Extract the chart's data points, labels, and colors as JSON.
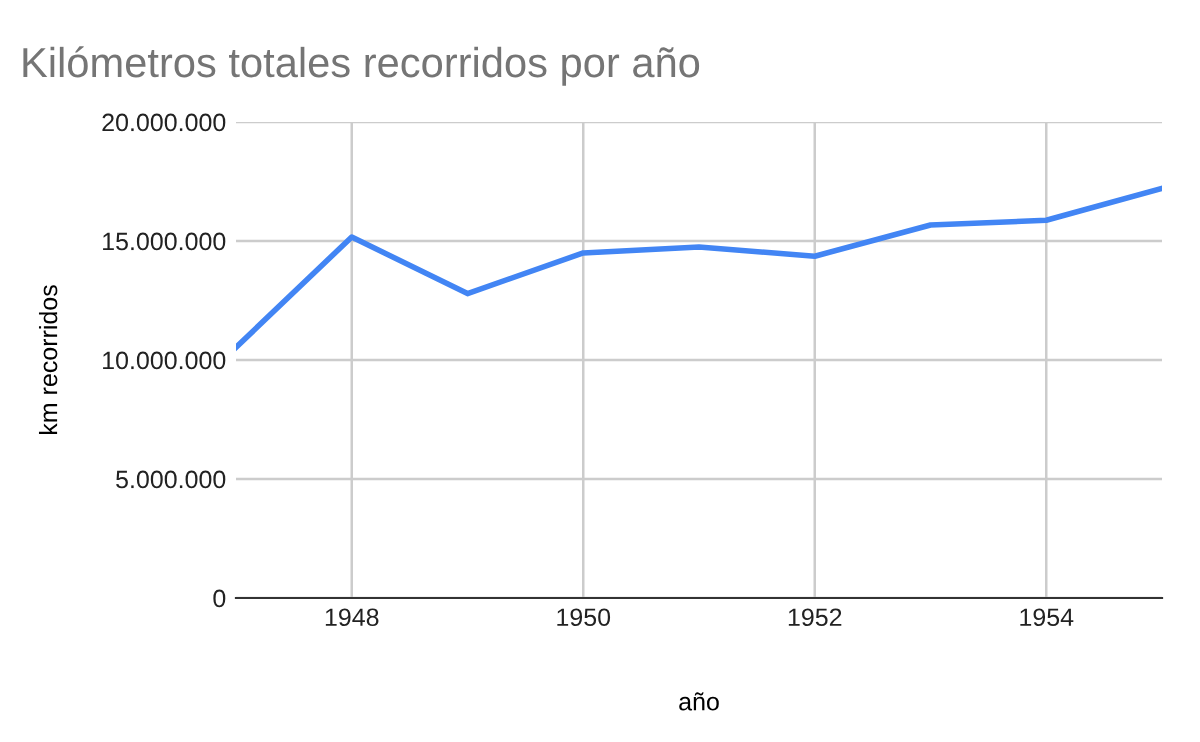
{
  "chart_data": {
    "type": "line",
    "title": "Kilómetros totales recorridos por año",
    "xlabel": "año",
    "ylabel": "km recorridos",
    "x": [
      1947,
      1948,
      1949,
      1950,
      1951,
      1952,
      1953,
      1954,
      1955
    ],
    "series": [
      {
        "color": "#4285f4",
        "values": [
          10530000,
          15170000,
          12790000,
          14500000,
          14750000,
          14360000,
          15670000,
          15870000,
          17210000
        ]
      }
    ],
    "xlim": [
      1947,
      1955
    ],
    "xticks": [
      1948,
      1950,
      1952,
      1954
    ],
    "ylim": [
      0,
      20000000
    ],
    "yticks": [
      {
        "value": 0,
        "label": "0"
      },
      {
        "value": 5000000,
        "label": "5.000.000"
      },
      {
        "value": 10000000,
        "label": "10.000.000"
      },
      {
        "value": 15000000,
        "label": "15.000.000"
      },
      {
        "value": 20000000,
        "label": "20.000.000"
      }
    ],
    "grid": true,
    "legend": false,
    "marker": "none",
    "line_style": "solid"
  }
}
